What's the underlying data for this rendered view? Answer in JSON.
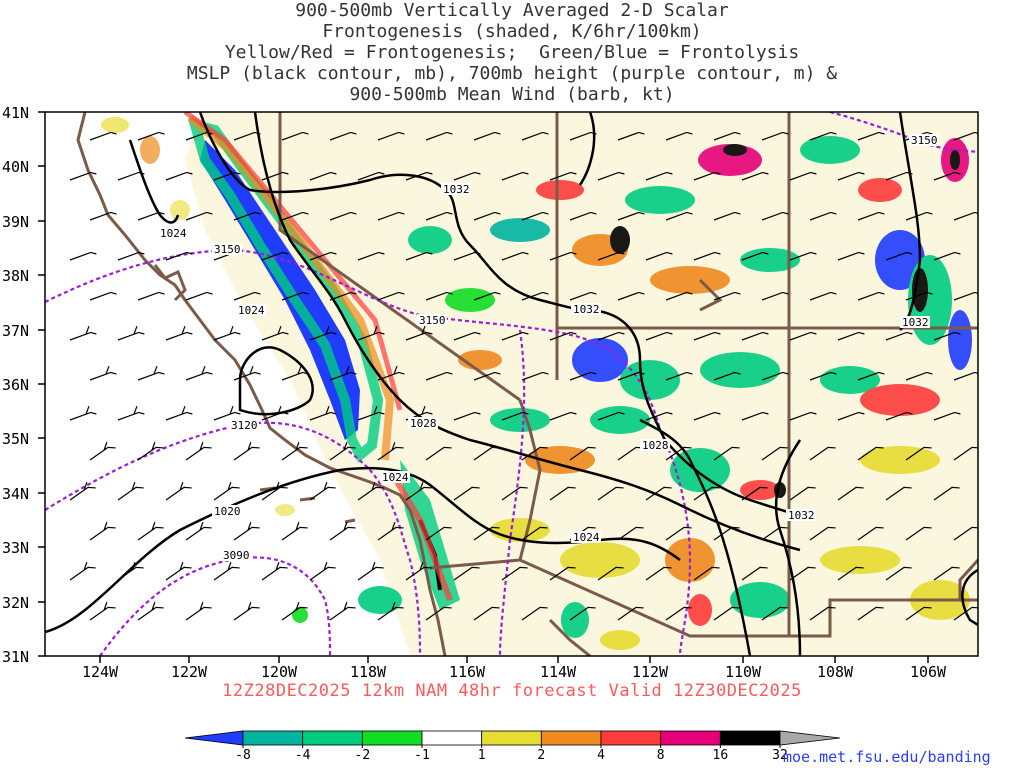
{
  "title_lines": [
    "900-500mb Vertically Averaged 2-D Scalar",
    "Frontogenesis (shaded, K/6hr/100km)",
    "Yellow/Red = Frontogenesis;  Green/Blue = Frontolysis",
    "MSLP (black contour, mb), 700mb height (purple contour, m) &",
    "900-500mb Mean Wind (barb, kt)"
  ],
  "lat_labels": [
    "41N",
    "40N",
    "39N",
    "38N",
    "37N",
    "36N",
    "35N",
    "34N",
    "33N",
    "32N",
    "31N"
  ],
  "lon_labels": [
    "124W",
    "122W",
    "120W",
    "118W",
    "116W",
    "114W",
    "112W",
    "110W",
    "108W",
    "106W"
  ],
  "valid_time": "12Z28DEC2025 12km NAM 48hr forecast Valid 12Z30DEC2025",
  "credit": "moe.met.fsu.edu/banding",
  "colorbar": {
    "labels": [
      "-8",
      "-4",
      "-2",
      "-1",
      "1",
      "2",
      "4",
      "8",
      "16",
      "32"
    ],
    "colors": [
      "#1f3cff",
      "#00b4a0",
      "#00cc80",
      "#11dd22",
      "#ffffff",
      "#e6dc32",
      "#ee8a1e",
      "#ff3c3c",
      "#e6007a",
      "#000000",
      "#a9a9a9"
    ]
  },
  "mslp_labels": [
    "1024",
    "1024",
    "1032",
    "1032",
    "1032",
    "1028",
    "1028",
    "1024",
    "1024",
    "1020",
    "1032"
  ],
  "height_labels": [
    "3150",
    "3150",
    "3150",
    "3120",
    "3090"
  ],
  "colors": {
    "coast": "#7a5a48",
    "mslp": "#000000",
    "height": "#9b1ed6",
    "frontolysis": "#00cc80",
    "frontogenesis": "#ee8a1e"
  }
}
